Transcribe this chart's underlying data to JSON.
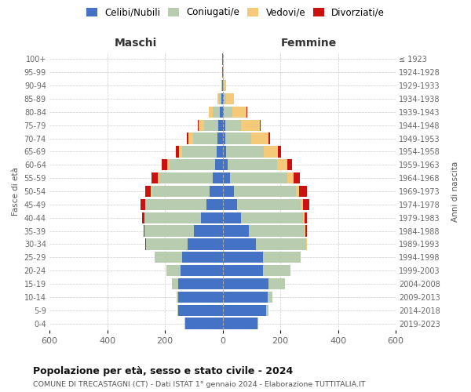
{
  "age_groups": [
    "100+",
    "95-99",
    "90-94",
    "85-89",
    "80-84",
    "75-79",
    "70-74",
    "65-69",
    "60-64",
    "55-59",
    "50-54",
    "45-49",
    "40-44",
    "35-39",
    "30-34",
    "25-29",
    "20-24",
    "15-19",
    "10-14",
    "5-9",
    "0-4"
  ],
  "birth_years": [
    "≤ 1923",
    "1924-1928",
    "1929-1933",
    "1934-1938",
    "1939-1943",
    "1944-1948",
    "1949-1953",
    "1954-1958",
    "1959-1963",
    "1964-1968",
    "1969-1973",
    "1974-1978",
    "1979-1983",
    "1984-1988",
    "1989-1993",
    "1994-1998",
    "1999-2003",
    "2004-2008",
    "2009-2013",
    "2014-2018",
    "2019-2023"
  ],
  "male": {
    "celibi": [
      2,
      1,
      2,
      5,
      10,
      15,
      18,
      20,
      25,
      35,
      45,
      55,
      75,
      100,
      120,
      140,
      145,
      155,
      155,
      155,
      130
    ],
    "coniugati": [
      0,
      0,
      2,
      8,
      25,
      50,
      85,
      120,
      160,
      185,
      200,
      210,
      195,
      170,
      145,
      95,
      50,
      20,
      5,
      3,
      2
    ],
    "vedovi": [
      0,
      0,
      0,
      5,
      12,
      18,
      15,
      12,
      8,
      5,
      3,
      2,
      1,
      0,
      0,
      0,
      0,
      0,
      0,
      0,
      0
    ],
    "divorziati": [
      0,
      0,
      0,
      0,
      0,
      2,
      5,
      10,
      18,
      22,
      20,
      18,
      8,
      5,
      3,
      1,
      0,
      0,
      0,
      0,
      0
    ]
  },
  "female": {
    "nubili": [
      1,
      1,
      2,
      3,
      5,
      8,
      10,
      12,
      18,
      25,
      38,
      50,
      65,
      90,
      115,
      140,
      140,
      160,
      155,
      150,
      120
    ],
    "coniugate": [
      0,
      0,
      2,
      10,
      28,
      55,
      90,
      130,
      170,
      200,
      215,
      220,
      215,
      195,
      175,
      130,
      95,
      55,
      18,
      8,
      3
    ],
    "vedove": [
      1,
      2,
      8,
      25,
      50,
      65,
      60,
      50,
      35,
      20,
      12,
      8,
      3,
      2,
      1,
      0,
      0,
      0,
      0,
      0,
      0
    ],
    "divorziate": [
      0,
      0,
      0,
      0,
      2,
      3,
      5,
      10,
      18,
      22,
      28,
      22,
      10,
      5,
      2,
      1,
      0,
      0,
      0,
      0,
      0
    ]
  },
  "colors": {
    "celibi_nubili": "#4472C4",
    "coniugati": "#B8CCB0",
    "vedovi": "#F5C97A",
    "divorziati": "#CC1111"
  },
  "title": "Popolazione per età, sesso e stato civile - 2024",
  "subtitle": "COMUNE DI TRECASTAGNI (CT) - Dati ISTAT 1° gennaio 2024 - Elaborazione TUTTITALIA.IT",
  "xlabel_left": "Maschi",
  "xlabel_right": "Femmine",
  "ylabel": "Fasce di età",
  "ylabel_right": "Anni di nascita",
  "xlim": 600,
  "bg_color": "#ffffff",
  "grid_color": "#cccccc"
}
